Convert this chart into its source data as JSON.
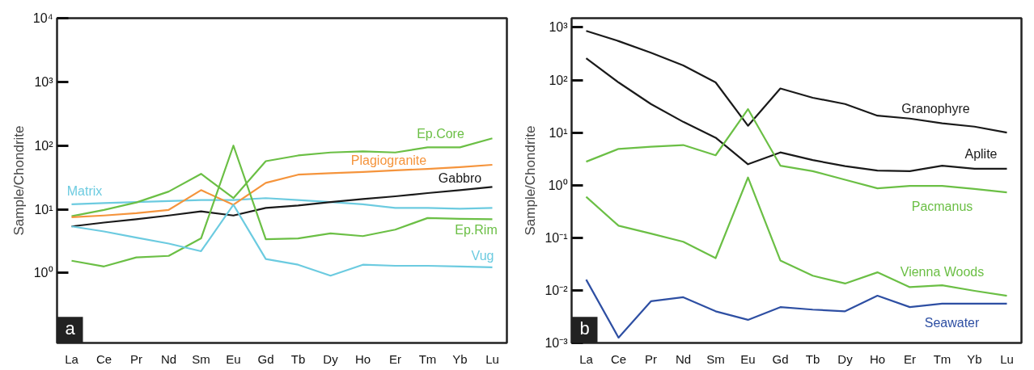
{
  "chart_data": [
    {
      "type": "line",
      "ylabel": "Sample/Chondrite",
      "log": true,
      "categories": [
        "La",
        "Ce",
        "Pr",
        "Nd",
        "Sm",
        "Eu",
        "Gd",
        "Tb",
        "Dy",
        "Ho",
        "Er",
        "Tm",
        "Yb",
        "Lu"
      ],
      "ylim": [
        0.08,
        10000
      ],
      "yticks": [
        {
          "value": 1,
          "label": "10⁰"
        },
        {
          "value": 10,
          "label": "10¹"
        },
        {
          "value": 100,
          "label": "10²"
        },
        {
          "value": 1000,
          "label": "10³"
        },
        {
          "value": 10000,
          "label": "10⁴"
        }
      ],
      "annotations": [
        "a"
      ],
      "series": [
        {
          "name": "Matrix",
          "color": "#6ccbe0",
          "values": [
            12,
            12.5,
            13,
            13.5,
            14,
            14,
            15,
            14,
            13,
            12,
            10.5,
            10.5,
            10.2,
            10.5
          ]
        },
        {
          "name": "Ep.Core",
          "color": "#6bbf45",
          "values": [
            7.8,
            9.8,
            12.8,
            19,
            36,
            15,
            57,
            70,
            78,
            81,
            78,
            94,
            94,
            130
          ]
        },
        {
          "name": "Plagiogranite",
          "color": "#f5943c",
          "values": [
            7.5,
            8,
            8.7,
            9.8,
            20,
            11.8,
            26,
            35,
            37,
            38.5,
            41,
            43,
            46,
            50
          ]
        },
        {
          "name": "Gabbro",
          "color": "#1a1a1a",
          "values": [
            5.4,
            6.2,
            7,
            8,
            9.3,
            8,
            10.5,
            11.5,
            13,
            14.5,
            16,
            18,
            20,
            22.5
          ]
        },
        {
          "name": "Ep.Rim",
          "color": "#6bbf45",
          "values": [
            1.56,
            1.27,
            1.76,
            1.86,
            3.5,
            100,
            3.4,
            3.5,
            4.2,
            3.8,
            4.8,
            7.3,
            7.1,
            7
          ]
        },
        {
          "name": "Vug",
          "color": "#6ccbe0",
          "values": [
            5.4,
            4.5,
            3.6,
            2.9,
            2.2,
            11.8,
            1.66,
            1.35,
            0.91,
            1.35,
            1.3,
            1.3,
            1.27,
            1.23
          ]
        }
      ]
    },
    {
      "type": "line",
      "ylabel": "Sample/Chondrite",
      "log": true,
      "categories": [
        "La",
        "Ce",
        "Pr",
        "Nd",
        "Sm",
        "Eu",
        "Gd",
        "Tb",
        "Dy",
        "Ho",
        "Er",
        "Tm",
        "Yb",
        "Lu"
      ],
      "ylim": [
        0.001,
        1500
      ],
      "yticks": [
        {
          "value": 0.001,
          "label": "10⁻³"
        },
        {
          "value": 0.01,
          "label": "10⁻²"
        },
        {
          "value": 0.1,
          "label": "10⁻¹"
        },
        {
          "value": 1,
          "label": "10⁰"
        },
        {
          "value": 10,
          "label": "10¹"
        },
        {
          "value": 100,
          "label": "10²"
        },
        {
          "value": 1000,
          "label": "10³"
        }
      ],
      "annotations": [
        "b"
      ],
      "series": [
        {
          "name": "Granophyre",
          "color": "#1a1a1a",
          "values": [
            860,
            550,
            330,
            190,
            90,
            13.5,
            69,
            46,
            35,
            21,
            18.5,
            15,
            13,
            10
          ]
        },
        {
          "name": "Aplite",
          "color": "#1a1a1a",
          "values": [
            260,
            90,
            35,
            16,
            8,
            2.5,
            4.2,
            3,
            2.3,
            1.9,
            1.85,
            2.35,
            2.05,
            2.05
          ]
        },
        {
          "name": "Pacmanus",
          "color": "#6bbf45",
          "values": [
            2.8,
            4.9,
            5.4,
            5.8,
            3.7,
            28,
            2.35,
            1.85,
            1.27,
            0.87,
            0.97,
            0.97,
            0.85,
            0.73
          ]
        },
        {
          "name": "Vienna Woods",
          "color": "#6bbf45",
          "values": [
            0.6,
            0.17,
            0.12,
            0.084,
            0.041,
            1.4,
            0.037,
            0.019,
            0.0135,
            0.022,
            0.0115,
            0.0125,
            0.0098,
            0.0079
          ]
        },
        {
          "name": "Seawater",
          "color": "#2e4fa3",
          "values": [
            0.016,
            0.00126,
            0.0062,
            0.0074,
            0.004,
            0.00275,
            0.0048,
            0.0043,
            0.004,
            0.0079,
            0.0048,
            0.0056,
            0.0056,
            0.0056
          ]
        }
      ]
    }
  ]
}
